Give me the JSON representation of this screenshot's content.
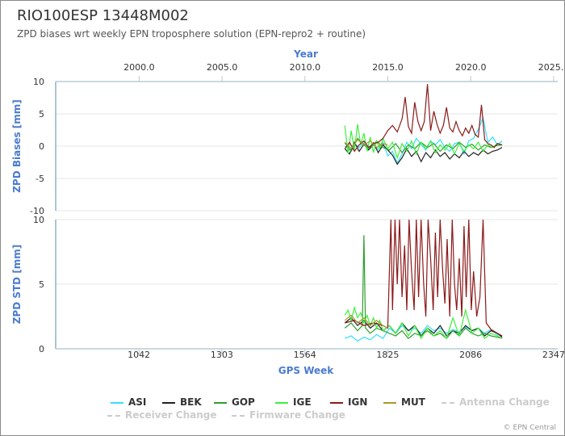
{
  "title": "RIO100ESP 13448M002",
  "subtitle": "ZPD biases wrt weekly EPN troposphere solution (EPN-repro2 + routine)",
  "credits": "© EPN Central",
  "chart_data": [
    {
      "type": "line",
      "ylabel": "ZPD Biases [mm]",
      "xlabel_top": "Year",
      "ylim": [
        -10,
        10
      ],
      "yticks": [
        "10",
        "5",
        "0",
        "-5",
        "-10"
      ],
      "x_top_ticks": [
        "2000.0",
        "2005.0",
        "2010.0",
        "2015.0",
        "2020.0",
        "2025.0"
      ],
      "x_range_gps_week": [
        780,
        2360
      ],
      "series": [
        {
          "name": "ASI",
          "color": "#33e0ff",
          "x": [
            1690,
            1705,
            1720,
            1735,
            1750,
            1765,
            1780,
            1795,
            1810,
            1825,
            1840,
            1855,
            1870,
            1885,
            1900,
            1915,
            1930,
            1945,
            1960,
            1975,
            1990,
            2005,
            2020,
            2035,
            2050,
            2065,
            2080,
            2095,
            2110,
            2125,
            2140,
            2155,
            2170,
            2185
          ],
          "values": [
            0.0,
            -0.6,
            0.4,
            -0.2,
            0.5,
            -0.4,
            0.2,
            -0.5,
            0.6,
            -1.5,
            -0.8,
            -2.6,
            -1.2,
            0.6,
            -0.4,
            1.2,
            0.3,
            -0.6,
            0.8,
            0.2,
            1.0,
            -0.2,
            -0.8,
            0.4,
            0.6,
            -1.2,
            0.8,
            1.2,
            2.6,
            4.4,
            0.6,
            1.4,
            0.2,
            0.8
          ]
        },
        {
          "name": "BEK",
          "color": "#222222",
          "x": [
            1690,
            1705,
            1720,
            1735,
            1750,
            1765,
            1780,
            1795,
            1810,
            1825,
            1840,
            1855,
            1870,
            1885,
            1900,
            1915,
            1930,
            1945,
            1960,
            1975,
            1990,
            2005,
            2020,
            2035,
            2050,
            2065,
            2080,
            2095,
            2110,
            2125,
            2140,
            2155,
            2170,
            2185
          ],
          "values": [
            -0.4,
            -1.2,
            0.6,
            -0.8,
            0.3,
            -0.6,
            0.5,
            -1.0,
            0.2,
            -0.6,
            -1.4,
            -2.8,
            -1.8,
            -0.4,
            -1.6,
            -0.8,
            -2.4,
            -1.0,
            -1.8,
            -0.6,
            -1.6,
            -1.0,
            -2.0,
            -1.2,
            -1.8,
            -0.8,
            -1.6,
            -1.0,
            -1.4,
            -0.6,
            -1.2,
            -0.8,
            -0.6,
            -0.2
          ]
        },
        {
          "name": "GOP",
          "color": "#2e9e2e",
          "x": [
            1690,
            1710,
            1730,
            1750,
            1770,
            1790,
            1810,
            1830,
            1850,
            1870,
            1890,
            1910,
            1930,
            1950,
            1970,
            1990,
            2010,
            2030,
            2050,
            2070,
            2090,
            2110,
            2130,
            2150,
            2170,
            2185
          ],
          "values": [
            0.5,
            -0.8,
            1.2,
            0.2,
            -0.4,
            0.8,
            -0.2,
            -0.6,
            0.4,
            -1.0,
            0.2,
            -0.4,
            0.6,
            -0.2,
            0.4,
            -0.8,
            0.2,
            -0.4,
            0.6,
            -0.2,
            0.3,
            -0.6,
            0.2,
            -0.2,
            0.1,
            0.2
          ]
        },
        {
          "name": "IGE",
          "color": "#3cf03c",
          "x": [
            1690,
            1700,
            1710,
            1720,
            1730,
            1740,
            1750,
            1760,
            1770,
            1780,
            1790,
            1800,
            1810,
            1825,
            1840,
            1855,
            1870,
            1885,
            1900,
            1915,
            1930,
            1945,
            1960,
            1975,
            1990,
            2005,
            2020,
            2035,
            2050,
            2065,
            2080,
            2095,
            2110,
            2125,
            2140,
            2155,
            2170,
            2185
          ],
          "values": [
            3.2,
            -1.2,
            2.4,
            -0.6,
            3.4,
            0.2,
            2.0,
            -0.8,
            1.4,
            -1.0,
            0.8,
            -0.4,
            1.2,
            -0.4,
            0.6,
            -1.8,
            0.4,
            -0.8,
            0.8,
            -1.2,
            0.6,
            -0.4,
            0.8,
            -1.0,
            0.2,
            -0.6,
            0.4,
            -1.2,
            0.4,
            -0.8,
            0.2,
            -0.4,
            0.6,
            -0.8,
            0.2,
            -0.2,
            0.4,
            0.2
          ]
        },
        {
          "name": "IGN",
          "color": "#8b1a1a",
          "x": [
            1690,
            1705,
            1720,
            1735,
            1750,
            1765,
            1780,
            1795,
            1810,
            1825,
            1840,
            1855,
            1870,
            1880,
            1890,
            1900,
            1910,
            1920,
            1930,
            1940,
            1950,
            1960,
            1970,
            1980,
            1990,
            2000,
            2010,
            2020,
            2030,
            2040,
            2050,
            2060,
            2070,
            2080,
            2090,
            2100,
            2110,
            2120,
            2130,
            2140,
            2150,
            2160,
            2170,
            2185
          ],
          "values": [
            -0.4,
            0.6,
            -0.8,
            0.2,
            0.8,
            -0.2,
            0.4,
            0.6,
            1.2,
            2.4,
            3.2,
            2.2,
            4.2,
            7.6,
            3.0,
            2.0,
            6.8,
            3.8,
            2.4,
            3.8,
            9.6,
            2.4,
            5.4,
            3.4,
            2.0,
            3.2,
            6.0,
            2.8,
            2.2,
            3.8,
            2.4,
            1.6,
            2.8,
            2.0,
            3.2,
            1.8,
            1.4,
            6.4,
            1.0,
            0.4,
            0.2,
            -0.2,
            0.4,
            0.2
          ]
        },
        {
          "name": "MUT",
          "color": "#a89a2a",
          "x": [
            1690,
            1710,
            1730,
            1750,
            1770,
            1790,
            1810,
            1825
          ],
          "values": [
            0.6,
            -0.4,
            1.0,
            0.2,
            0.8,
            -0.2,
            0.4,
            0.2
          ]
        }
      ]
    },
    {
      "type": "line",
      "ylabel": "ZPD STD [mm]",
      "xlabel": "GPS Week",
      "ylim": [
        0,
        10
      ],
      "yticks": [
        "10",
        "5",
        "0"
      ],
      "x_bottom_ticks": [
        "1042",
        "1303",
        "1564",
        "1825",
        "2086",
        "2347"
      ],
      "x_range_gps_week": [
        780,
        2360
      ],
      "series": [
        {
          "name": "ASI",
          "color": "#33e0ff",
          "x": [
            1690,
            1710,
            1730,
            1750,
            1770,
            1790,
            1810,
            1830,
            1850,
            1870,
            1890,
            1910,
            1930,
            1950,
            1970,
            1990,
            2010,
            2030,
            2050,
            2070,
            2090,
            2110,
            2130,
            2150,
            2170,
            2185
          ],
          "values": [
            0.8,
            1.0,
            0.6,
            0.9,
            0.7,
            1.1,
            0.8,
            1.6,
            1.2,
            1.8,
            1.4,
            1.6,
            1.2,
            1.8,
            1.4,
            1.6,
            1.2,
            1.5,
            1.3,
            1.7,
            1.4,
            1.6,
            1.2,
            1.5,
            1.1,
            1.0
          ]
        },
        {
          "name": "BEK",
          "color": "#222222",
          "x": [
            1690,
            1710,
            1730,
            1750,
            1770,
            1790,
            1810,
            1830,
            1850,
            1870,
            1890,
            1910,
            1930,
            1950,
            1970,
            1990,
            2010,
            2030,
            2050,
            2070,
            2090,
            2110,
            2130,
            2150,
            2170,
            2185
          ],
          "values": [
            2.0,
            2.4,
            1.8,
            2.2,
            1.6,
            2.0,
            1.4,
            1.8,
            1.2,
            2.0,
            1.4,
            1.8,
            1.0,
            1.6,
            1.2,
            1.8,
            1.0,
            1.4,
            1.2,
            1.8,
            1.4,
            1.6,
            1.0,
            1.4,
            1.2,
            0.9
          ]
        },
        {
          "name": "GOP",
          "color": "#2e9e2e",
          "x": [
            1690,
            1710,
            1730,
            1745,
            1750,
            1755,
            1770,
            1790,
            1810,
            1830,
            1850,
            1870,
            1890,
            1910,
            1930,
            1950,
            1970,
            1990,
            2010,
            2030,
            2050,
            2070,
            2090,
            2110,
            2130,
            2150,
            2170,
            2185
          ],
          "values": [
            1.6,
            2.0,
            1.4,
            1.8,
            8.8,
            1.6,
            1.2,
            1.6,
            1.4,
            1.2,
            1.0,
            1.4,
            0.8,
            1.2,
            1.0,
            1.4,
            1.0,
            1.2,
            0.8,
            1.4,
            1.0,
            1.6,
            1.2,
            1.0,
            1.2,
            1.0,
            0.9,
            0.8
          ]
        },
        {
          "name": "IGE",
          "color": "#3cf03c",
          "x": [
            1690,
            1700,
            1710,
            1720,
            1730,
            1740,
            1750,
            1760,
            1770,
            1780,
            1790,
            1800,
            1810,
            1830,
            1850,
            1870,
            1890,
            1910,
            1930,
            1950,
            1970,
            1990,
            2010,
            2030,
            2050,
            2070,
            2090,
            2110,
            2130,
            2150,
            2170,
            2185
          ],
          "values": [
            2.6,
            3.0,
            2.2,
            3.2,
            2.4,
            2.8,
            2.0,
            2.6,
            1.8,
            2.4,
            1.6,
            2.2,
            1.4,
            1.8,
            1.2,
            2.0,
            1.0,
            1.8,
            0.8,
            1.6,
            1.0,
            1.4,
            0.8,
            2.4,
            1.0,
            3.0,
            1.2,
            1.6,
            0.8,
            1.2,
            1.0,
            0.8
          ]
        },
        {
          "name": "IGN",
          "color": "#8b1a1a",
          "x": [
            1690,
            1720,
            1750,
            1780,
            1810,
            1825,
            1835,
            1840,
            1848,
            1855,
            1862,
            1870,
            1878,
            1885,
            1892,
            1900,
            1908,
            1915,
            1922,
            1930,
            1938,
            1945,
            1952,
            1960,
            1968,
            1975,
            1982,
            1990,
            1998,
            2005,
            2012,
            2020,
            2028,
            2035,
            2042,
            2050,
            2058,
            2065,
            2072,
            2080,
            2088,
            2095,
            2105,
            2115,
            2125,
            2135,
            2150,
            2170,
            2185
          ],
          "values": [
            2.0,
            2.2,
            1.8,
            2.0,
            1.8,
            1.6,
            10,
            3.0,
            10,
            5.0,
            10,
            4.0,
            8.0,
            3.0,
            10,
            6.0,
            3.0,
            10,
            4.0,
            10,
            5.0,
            2.5,
            10,
            7.0,
            3.0,
            9.0,
            4.0,
            10,
            6.0,
            3.5,
            8.5,
            2.5,
            10,
            5.0,
            3.0,
            7.0,
            2.5,
            9.5,
            4.0,
            10,
            3.0,
            6.0,
            2.5,
            4.0,
            10,
            2.0,
            1.5,
            1.2,
            1.0
          ]
        },
        {
          "name": "MUT",
          "color": "#a89a2a",
          "x": [
            1690,
            1710,
            1730,
            1750,
            1770,
            1790,
            1810,
            1825
          ],
          "values": [
            2.2,
            2.6,
            2.0,
            2.4,
            1.8,
            2.2,
            1.8,
            1.6
          ]
        }
      ]
    }
  ],
  "legend": {
    "items": [
      {
        "label": "ASI",
        "color": "#33e0ff",
        "enabled": true
      },
      {
        "label": "BEK",
        "color": "#222222",
        "enabled": true
      },
      {
        "label": "GOP",
        "color": "#2e9e2e",
        "enabled": true
      },
      {
        "label": "IGE",
        "color": "#3cf03c",
        "enabled": true
      },
      {
        "label": "IGN",
        "color": "#8b1a1a",
        "enabled": true
      },
      {
        "label": "MUT",
        "color": "#a89a2a",
        "enabled": true
      },
      {
        "label": "Antenna Change",
        "color": "#cccccc",
        "enabled": false
      },
      {
        "label": "Receiver Change",
        "color": "#cccccc",
        "enabled": false
      },
      {
        "label": "Firmware Change",
        "color": "#cccccc",
        "enabled": false
      }
    ]
  }
}
